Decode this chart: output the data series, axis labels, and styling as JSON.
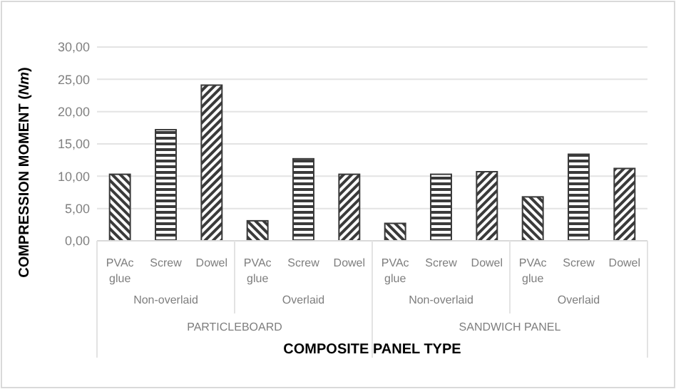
{
  "chart_data": {
    "type": "bar",
    "xlabel": "COMPOSITE PANEL TYPE",
    "ylabel": "COMPRESSION MOMENT (Nm)",
    "categories": [
      "PVAc glue",
      "Screw",
      "Dowel",
      "PVAc glue",
      "Screw",
      "Dowel",
      "PVAc glue",
      "Screw",
      "Dowel",
      "PVAc glue",
      "Screw",
      "Dowel"
    ],
    "values": [
      10.3,
      17.2,
      24.1,
      3.1,
      12.7,
      10.3,
      2.7,
      10.3,
      10.7,
      6.8,
      13.4,
      11.2
    ],
    "color": "#3a3a3a",
    "annotations": [
      "Non-overlaid",
      "Overlaid",
      "Non-overlaid",
      "Overlaid",
      "PARTICLEBOARD",
      "SANDWICH PANEL"
    ],
    "ylim": [
      0,
      30
    ],
    "yticks": [
      {
        "value": 0,
        "label": "0,00"
      },
      {
        "value": 5,
        "label": "5,00"
      },
      {
        "value": 10,
        "label": "10,00"
      },
      {
        "value": 15,
        "label": "15,00"
      },
      {
        "value": 20,
        "label": "20,00"
      },
      {
        "value": 25,
        "label": "25,00"
      },
      {
        "value": 30,
        "label": "30,00"
      }
    ],
    "grid": "y"
  }
}
